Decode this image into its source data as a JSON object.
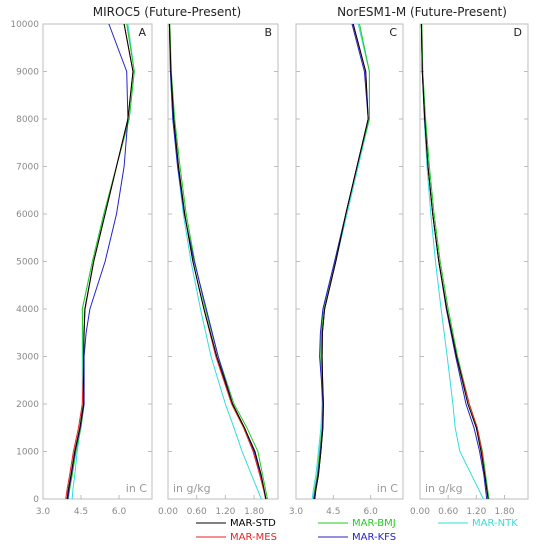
{
  "titles": {
    "left": "MIROC5 (Future-Present)",
    "right": "NorESM1-M (Future-Present)"
  },
  "legend": [
    {
      "name": "MAR-STD",
      "color": "#000000"
    },
    {
      "name": "MAR-BMJ",
      "color": "#22cc22"
    },
    {
      "name": "MAR-NTK",
      "color": "#33dddd"
    },
    {
      "name": "MAR-MES",
      "color": "#ee2222"
    },
    {
      "name": "MAR-KFS",
      "color": "#2222cc"
    }
  ],
  "chart_data": [
    {
      "panel": "A",
      "type": "line",
      "unit": "in C",
      "xlim": [
        3.0,
        7.3
      ],
      "xticks": [
        "3.0",
        "4.5",
        "6.0"
      ],
      "xtick_values": [
        3.0,
        4.5,
        6.0
      ],
      "ylim": [
        0,
        10000
      ],
      "yticks": [
        "0",
        "1000",
        "2000",
        "3000",
        "4000",
        "5000",
        "6000",
        "7000",
        "8000",
        "9000",
        "10000"
      ],
      "y": [
        0,
        200,
        500,
        1000,
        1500,
        2000,
        2500,
        3000,
        3500,
        4000,
        5000,
        6000,
        7000,
        8000,
        9000,
        10000
      ],
      "series": [
        {
          "name": "MAR-STD",
          "x": [
            3.95,
            4.0,
            4.1,
            4.25,
            4.45,
            4.6,
            4.6,
            4.6,
            4.62,
            4.65,
            5.0,
            5.45,
            5.9,
            6.35,
            6.55,
            6.2
          ]
        },
        {
          "name": "MAR-MES",
          "x": [
            3.9,
            3.95,
            4.05,
            4.2,
            4.4,
            4.55,
            4.58,
            4.6,
            4.62,
            4.66,
            5.0,
            5.45,
            5.9,
            6.35,
            6.55,
            6.2
          ]
        },
        {
          "name": "MAR-BMJ",
          "x": [
            4.0,
            4.05,
            4.15,
            4.3,
            4.5,
            4.62,
            4.6,
            4.58,
            4.57,
            4.55,
            4.95,
            5.4,
            5.9,
            6.4,
            6.6,
            6.3
          ]
        },
        {
          "name": "MAR-KFS",
          "x": [
            3.98,
            4.03,
            4.12,
            4.27,
            4.47,
            4.62,
            4.62,
            4.62,
            4.7,
            4.85,
            5.45,
            5.9,
            6.2,
            6.35,
            6.3,
            5.6
          ]
        },
        {
          "name": "MAR-NTK",
          "x": [
            4.15,
            4.18,
            4.25,
            4.35,
            4.48,
            4.55,
            4.55,
            4.55,
            4.55,
            4.55,
            4.95,
            5.4,
            5.9,
            6.4,
            6.6,
            6.35
          ]
        }
      ]
    },
    {
      "panel": "B",
      "type": "line",
      "unit": "in g/kg",
      "xlim": [
        0,
        2.3
      ],
      "xticks": [
        "0.00",
        "0.60",
        "1.20",
        "1.80"
      ],
      "xtick_values": [
        0,
        0.6,
        1.2,
        1.8
      ],
      "ylim": [
        0,
        10000
      ],
      "y": [
        0,
        500,
        1000,
        1500,
        2000,
        3000,
        4000,
        5000,
        6000,
        7000,
        8000,
        9000,
        10000
      ],
      "series": [
        {
          "name": "MAR-STD",
          "x": [
            2.05,
            1.95,
            1.82,
            1.6,
            1.35,
            1.02,
            0.75,
            0.52,
            0.35,
            0.22,
            0.12,
            0.06,
            0.03
          ]
        },
        {
          "name": "MAR-MES",
          "x": [
            2.05,
            1.92,
            1.78,
            1.58,
            1.33,
            1.0,
            0.75,
            0.52,
            0.35,
            0.22,
            0.12,
            0.06,
            0.03
          ]
        },
        {
          "name": "MAR-BMJ",
          "x": [
            2.08,
            1.98,
            1.88,
            1.65,
            1.38,
            1.05,
            0.78,
            0.56,
            0.38,
            0.25,
            0.14,
            0.07,
            0.04
          ]
        },
        {
          "name": "MAR-KFS",
          "x": [
            2.04,
            1.94,
            1.8,
            1.6,
            1.35,
            1.05,
            0.8,
            0.55,
            0.34,
            0.2,
            0.1,
            0.05,
            0.03
          ]
        },
        {
          "name": "MAR-NTK",
          "x": [
            1.95,
            1.75,
            1.55,
            1.38,
            1.2,
            0.9,
            0.68,
            0.48,
            0.32,
            0.2,
            0.1,
            0.05,
            0.03
          ]
        }
      ]
    },
    {
      "panel": "C",
      "type": "line",
      "unit": "in C",
      "xlim": [
        3.0,
        7.3
      ],
      "xticks": [
        "3.0",
        "4.5",
        "6.0"
      ],
      "xtick_values": [
        3.0,
        4.5,
        6.0
      ],
      "ylim": [
        0,
        10000
      ],
      "y": [
        0,
        200,
        500,
        1000,
        1500,
        2000,
        2500,
        3000,
        3500,
        4000,
        5000,
        6000,
        7000,
        8000,
        9000,
        10000
      ],
      "series": [
        {
          "name": "MAR-STD",
          "x": [
            3.75,
            3.8,
            3.9,
            4.0,
            4.08,
            4.1,
            4.07,
            4.05,
            4.06,
            4.15,
            4.6,
            5.0,
            5.45,
            5.9,
            5.8,
            5.3
          ]
        },
        {
          "name": "MAR-MES",
          "x": [
            3.75,
            3.8,
            3.9,
            4.0,
            4.08,
            4.1,
            4.07,
            4.05,
            4.06,
            4.15,
            4.6,
            5.0,
            5.45,
            5.9,
            5.8,
            5.3
          ]
        },
        {
          "name": "MAR-BMJ",
          "x": [
            3.7,
            3.75,
            3.85,
            3.95,
            4.05,
            4.08,
            4.03,
            4.0,
            4.02,
            4.1,
            4.55,
            5.0,
            5.45,
            5.95,
            5.95,
            5.55
          ]
        },
        {
          "name": "MAR-KFS",
          "x": [
            3.72,
            3.78,
            3.88,
            3.98,
            4.06,
            4.08,
            4.02,
            3.95,
            3.98,
            4.08,
            4.55,
            5.0,
            5.45,
            5.9,
            5.75,
            5.25
          ]
        },
        {
          "name": "MAR-NTK",
          "x": [
            3.65,
            3.7,
            3.8,
            3.9,
            4.0,
            4.05,
            4.03,
            4.02,
            4.05,
            4.15,
            4.6,
            5.05,
            5.5,
            5.95,
            5.95,
            5.5
          ]
        }
      ]
    },
    {
      "panel": "D",
      "type": "line",
      "unit": "in g/kg",
      "xlim": [
        0,
        2.3
      ],
      "xticks": [
        "0.00",
        "0.60",
        "1.20",
        "1.80"
      ],
      "xtick_values": [
        0,
        0.6,
        1.2,
        1.8
      ],
      "ylim": [
        0,
        10000
      ],
      "y": [
        0,
        500,
        1000,
        1500,
        2000,
        3000,
        4000,
        5000,
        6000,
        7000,
        8000,
        9000,
        10000
      ],
      "series": [
        {
          "name": "MAR-STD",
          "x": [
            1.45,
            1.38,
            1.3,
            1.2,
            1.02,
            0.78,
            0.57,
            0.4,
            0.27,
            0.17,
            0.1,
            0.05,
            0.03
          ]
        },
        {
          "name": "MAR-MES",
          "x": [
            1.45,
            1.38,
            1.32,
            1.22,
            1.05,
            0.78,
            0.57,
            0.4,
            0.27,
            0.17,
            0.1,
            0.05,
            0.03
          ]
        },
        {
          "name": "MAR-BMJ",
          "x": [
            1.47,
            1.4,
            1.33,
            1.22,
            1.05,
            0.8,
            0.6,
            0.43,
            0.3,
            0.2,
            0.12,
            0.06,
            0.04
          ]
        },
        {
          "name": "MAR-KFS",
          "x": [
            1.42,
            1.36,
            1.27,
            1.15,
            0.98,
            0.76,
            0.56,
            0.4,
            0.27,
            0.17,
            0.1,
            0.05,
            0.03
          ]
        },
        {
          "name": "MAR-NTK",
          "x": [
            1.35,
            1.1,
            0.85,
            0.75,
            0.7,
            0.58,
            0.45,
            0.33,
            0.23,
            0.15,
            0.09,
            0.05,
            0.03
          ]
        }
      ]
    }
  ]
}
